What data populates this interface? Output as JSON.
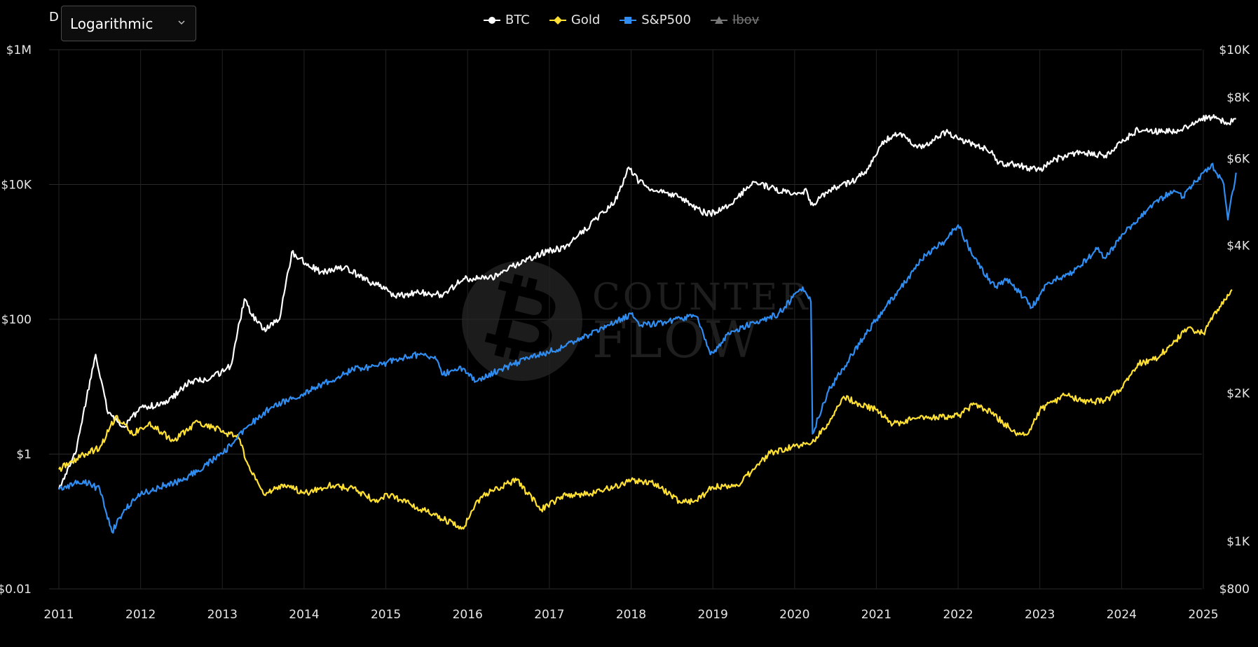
{
  "toolbar": {
    "prefix": "D",
    "scale_select": {
      "value": "Logarithmic"
    }
  },
  "legend": [
    {
      "name": "BTC",
      "color": "#ffffff",
      "marker": "circle",
      "active": true
    },
    {
      "name": "Gold",
      "color": "#ffe033",
      "marker": "diamond",
      "active": true
    },
    {
      "name": "S&P500",
      "color": "#2f8cf0",
      "marker": "square",
      "active": true
    },
    {
      "name": "Ibov",
      "color": "#8a8a8a",
      "marker": "triangle",
      "active": false
    }
  ],
  "watermark": {
    "line1": "COUNTER",
    "line2": "FLOW"
  },
  "chart_data": {
    "type": "line",
    "grid": true,
    "x_ticks": [
      "2011",
      "2012",
      "2013",
      "2014",
      "2015",
      "2016",
      "2017",
      "2018",
      "2019",
      "2020",
      "2021",
      "2022",
      "2023",
      "2024",
      "2025"
    ],
    "xlim": [
      2011.0,
      2025.45
    ],
    "y_left": {
      "scale": "log",
      "ylim": [
        0.01,
        1000000
      ],
      "ticks": [
        {
          "value": 1000000,
          "label": "$1M"
        },
        {
          "value": 10000,
          "label": "$10K"
        },
        {
          "value": 100,
          "label": "$100"
        },
        {
          "value": 1,
          "label": "$1"
        },
        {
          "value": 0.01,
          "label": "$0.01"
        }
      ]
    },
    "y_right": {
      "scale": "log",
      "ylim": [
        800,
        10000
      ],
      "ticks": [
        {
          "value": 10000,
          "label": "$10K"
        },
        {
          "value": 8000,
          "label": "$8K"
        },
        {
          "value": 6000,
          "label": "$6K"
        },
        {
          "value": 4000,
          "label": "$4K"
        },
        {
          "value": 2000,
          "label": "$2K"
        },
        {
          "value": 1000,
          "label": "$1K"
        },
        {
          "value": 800,
          "label": "$800"
        }
      ]
    },
    "series": [
      {
        "name": "BTC",
        "axis": "left",
        "color": "#ffffff",
        "x": [
          2011.0,
          2011.2,
          2011.45,
          2011.6,
          2011.8,
          2012.0,
          2012.3,
          2012.6,
          2012.85,
          2013.1,
          2013.27,
          2013.35,
          2013.5,
          2013.7,
          2013.85,
          2013.95,
          2014.2,
          2014.5,
          2014.8,
          2015.0,
          2015.1,
          2015.4,
          2015.7,
          2015.95,
          2016.3,
          2016.6,
          2016.9,
          2017.2,
          2017.5,
          2017.8,
          2017.97,
          2018.1,
          2018.3,
          2018.6,
          2018.85,
          2018.97,
          2019.2,
          2019.5,
          2019.7,
          2019.9,
          2020.15,
          2020.2,
          2020.5,
          2020.7,
          2020.9,
          2021.1,
          2021.3,
          2021.5,
          2021.7,
          2021.85,
          2022.0,
          2022.2,
          2022.4,
          2022.5,
          2022.7,
          2022.9,
          2023.0,
          2023.2,
          2023.5,
          2023.8,
          2024.0,
          2024.2,
          2024.5,
          2024.7,
          2024.95,
          2025.1,
          2025.3,
          2025.4
        ],
        "y": [
          0.3,
          1.0,
          30,
          4,
          2.5,
          5,
          5.5,
          12,
          13,
          20,
          200,
          120,
          70,
          100,
          1000,
          800,
          500,
          600,
          350,
          300,
          220,
          250,
          230,
          400,
          420,
          650,
          950,
          1200,
          2500,
          5500,
          18000,
          11000,
          8000,
          6500,
          4000,
          3700,
          5000,
          11000,
          9000,
          7500,
          8000,
          5000,
          9000,
          11000,
          17000,
          45000,
          58000,
          35000,
          45000,
          60000,
          47000,
          40000,
          30000,
          21000,
          20000,
          17000,
          16500,
          24000,
          30000,
          27000,
          42000,
          65000,
          60000,
          62000,
          95000,
          100000,
          82000,
          95000
        ]
      },
      {
        "name": "Gold",
        "axis": "right",
        "color": "#ffe033",
        "x": [
          2011.0,
          2011.3,
          2011.5,
          2011.7,
          2011.9,
          2012.1,
          2012.4,
          2012.7,
          2012.9,
          2013.2,
          2013.3,
          2013.5,
          2013.8,
          2014.0,
          2014.3,
          2014.6,
          2014.9,
          2015.0,
          2015.3,
          2015.6,
          2015.95,
          2016.1,
          2016.3,
          2016.6,
          2016.9,
          2017.2,
          2017.5,
          2017.8,
          2018.0,
          2018.3,
          2018.6,
          2018.8,
          2019.0,
          2019.3,
          2019.5,
          2019.7,
          2020.0,
          2020.2,
          2020.4,
          2020.6,
          2020.8,
          2021.0,
          2021.2,
          2021.5,
          2021.8,
          2022.0,
          2022.2,
          2022.4,
          2022.7,
          2022.85,
          2023.0,
          2023.3,
          2023.6,
          2023.8,
          2024.0,
          2024.2,
          2024.4,
          2024.6,
          2024.8,
          2025.0,
          2025.2,
          2025.35
        ],
        "y": [
          1400,
          1500,
          1550,
          1800,
          1650,
          1740,
          1600,
          1750,
          1700,
          1620,
          1450,
          1250,
          1300,
          1250,
          1300,
          1280,
          1200,
          1250,
          1190,
          1130,
          1060,
          1200,
          1270,
          1330,
          1160,
          1240,
          1250,
          1290,
          1330,
          1310,
          1200,
          1210,
          1290,
          1300,
          1400,
          1510,
          1560,
          1580,
          1730,
          1970,
          1900,
          1850,
          1730,
          1780,
          1790,
          1800,
          1900,
          1830,
          1660,
          1650,
          1850,
          1980,
          1920,
          1930,
          2050,
          2300,
          2340,
          2500,
          2700,
          2650,
          3000,
          3250
        ]
      },
      {
        "name": "S&P500",
        "axis": "left",
        "color": "#2f8cf0",
        "x": [
          2011.0,
          2011.3,
          2011.5,
          2011.65,
          2011.8,
          2012.0,
          2012.3,
          2012.5,
          2012.8,
          2013.0,
          2013.3,
          2013.6,
          2014.0,
          2014.3,
          2014.6,
          2014.9,
          2015.1,
          2015.4,
          2015.6,
          2015.7,
          2015.9,
          2016.1,
          2016.4,
          2016.7,
          2016.9,
          2017.2,
          2017.5,
          2017.8,
          2018.0,
          2018.1,
          2018.4,
          2018.7,
          2018.8,
          2018.97,
          2019.2,
          2019.5,
          2019.8,
          2020.1,
          2020.2,
          2020.22,
          2020.4,
          2020.7,
          2021.0,
          2021.3,
          2021.6,
          2021.85,
          2022.0,
          2022.2,
          2022.45,
          2022.6,
          2022.75,
          2022.9,
          2023.1,
          2023.4,
          2023.7,
          2023.8,
          2024.0,
          2024.3,
          2024.6,
          2024.75,
          2025.0,
          2025.1,
          2025.25,
          2025.3,
          2025.4
        ],
        "y": [
          0.3,
          0.4,
          0.3,
          0.07,
          0.15,
          0.25,
          0.35,
          0.4,
          0.7,
          1.0,
          2.5,
          5,
          8,
          12,
          18,
          20,
          25,
          30,
          28,
          15,
          20,
          12,
          18,
          25,
          30,
          40,
          60,
          90,
          120,
          80,
          90,
          110,
          110,
          30,
          60,
          90,
          120,
          300,
          180,
          2,
          8,
          30,
          100,
          300,
          900,
          1500,
          2500,
          800,
          300,
          400,
          250,
          150,
          350,
          500,
          1100,
          800,
          1800,
          4000,
          8000,
          6500,
          15000,
          20000,
          10000,
          3000,
          15000
        ]
      }
    ]
  }
}
